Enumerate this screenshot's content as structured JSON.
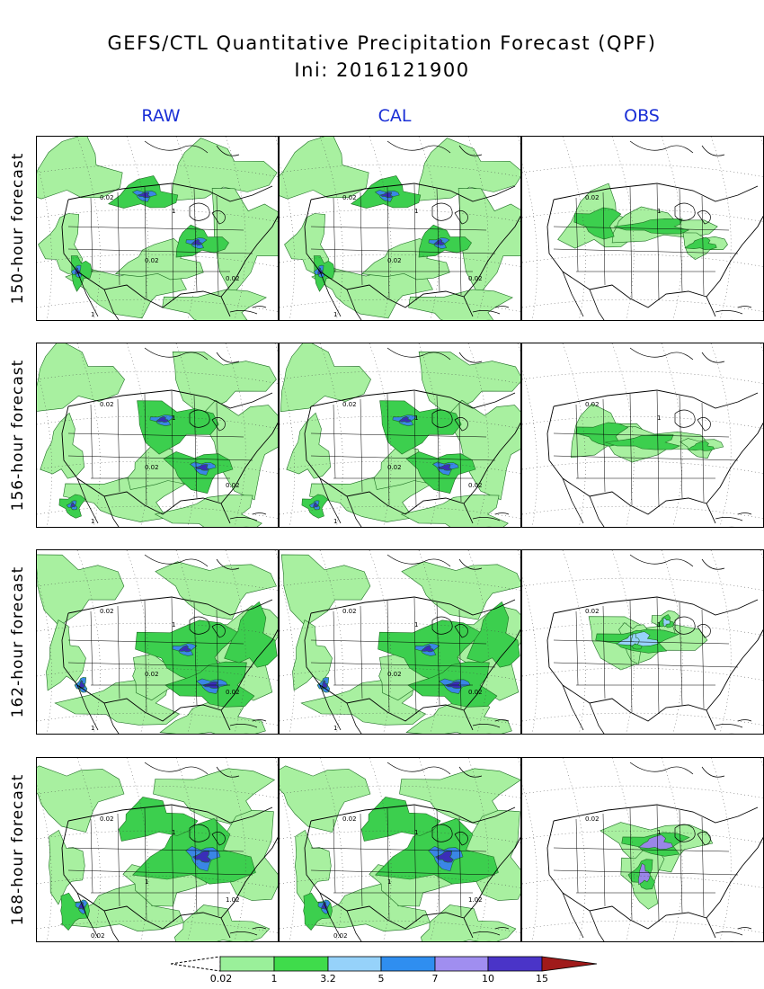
{
  "title": "GEFS/CTL Quantitative Precipitation Forecast (QPF)",
  "subtitle": "Ini: 2016121900",
  "columns": [
    "RAW",
    "CAL",
    "OBS"
  ],
  "rows": [
    {
      "label": "150-hour forecast",
      "contour_labels": [
        "0.02",
        "1"
      ]
    },
    {
      "label": "156-hour forecast",
      "contour_labels": [
        "0.02",
        "1"
      ]
    },
    {
      "label": "162-hour forecast",
      "contour_labels": [
        "0.02",
        "1"
      ]
    },
    {
      "label": "168-hour forecast",
      "contour_labels": [
        "0.02",
        "1",
        "1.02"
      ]
    }
  ],
  "legend": {
    "thresholds": [
      "0.02",
      "1",
      "3.2",
      "5",
      "7",
      "10",
      "15"
    ],
    "colors": [
      "#9af09a",
      "#3fdc4b",
      "#96d2fa",
      "#2f8ef0",
      "#a08ef0",
      "#4a34c8",
      "#a01a1a"
    ]
  },
  "map_colors": {
    "light_green": "#a8f0a0",
    "green": "#3ccf4e",
    "light_blue": "#96d2fa",
    "blue": "#3a86e6",
    "purple": "#9a86e8",
    "dark_blue": "#3a2eb8",
    "dark_red": "#a01a1a"
  }
}
